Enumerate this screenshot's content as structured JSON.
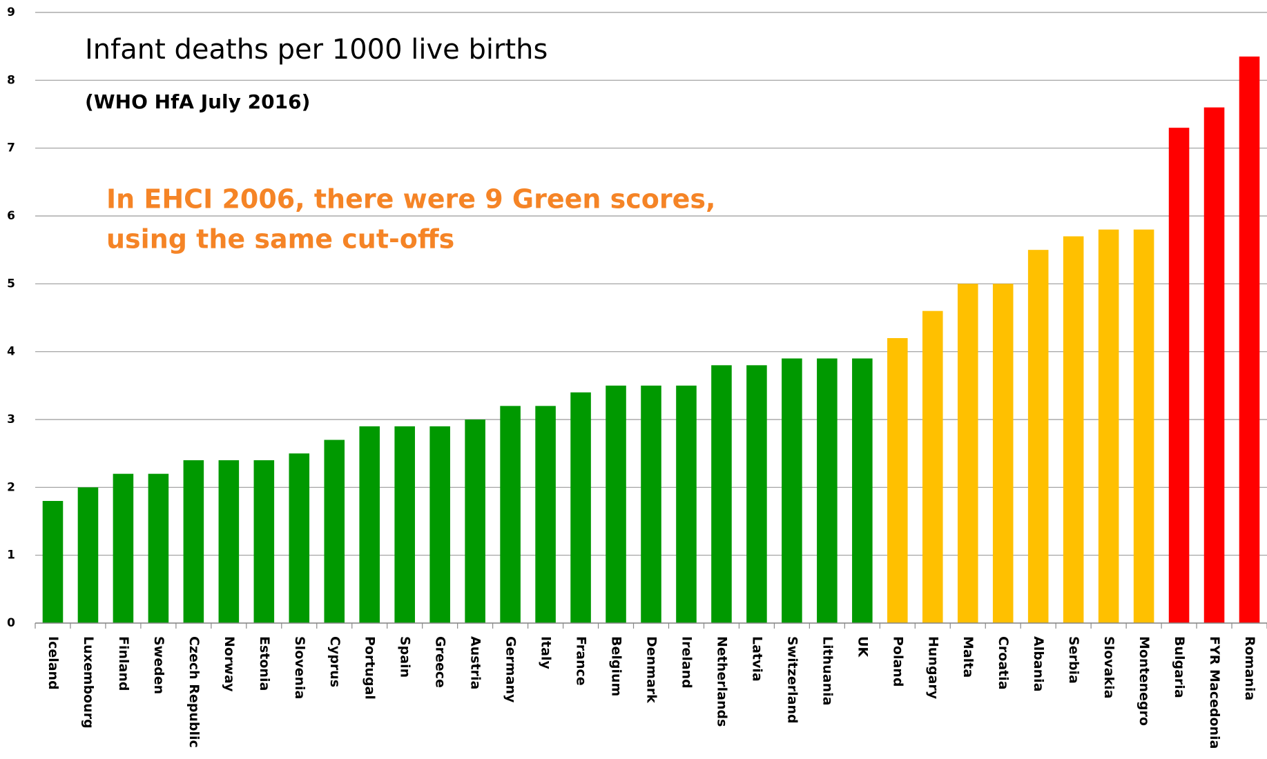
{
  "chart_data": {
    "type": "bar",
    "title": "Infant deaths per 1000 live births",
    "subtitle": "(WHO HfA July 2016)",
    "annotation": [
      "In EHCI 2006, there were 9 Green scores,",
      "using the same cut-offs"
    ],
    "categories": [
      "Iceland",
      "Luxembourg",
      "Finland",
      "Sweden",
      "Czech Republic",
      "Norway",
      "Estonia",
      "Slovenia",
      "Cyprus",
      "Portugal",
      "Spain",
      "Greece",
      "Austria",
      "Germany",
      "Italy",
      "France",
      "Belgium",
      "Denmark",
      "Ireland",
      "Netherlands",
      "Latvia",
      "Switzerland",
      "Lithuania",
      "UK",
      "Poland",
      "Hungary",
      "Malta",
      "Croatia",
      "Albania",
      "Serbia",
      "Slovakia",
      "Montenegro",
      "Bulgaria",
      "FYR Macedonia",
      "Romania"
    ],
    "values": [
      1.8,
      2.0,
      2.2,
      2.2,
      2.4,
      2.4,
      2.4,
      2.5,
      2.7,
      2.9,
      2.9,
      2.9,
      3.0,
      3.2,
      3.2,
      3.4,
      3.5,
      3.5,
      3.5,
      3.8,
      3.8,
      3.9,
      3.9,
      3.9,
      4.2,
      4.6,
      5.0,
      5.0,
      5.5,
      5.7,
      5.8,
      5.8,
      7.3,
      7.6,
      8.35
    ],
    "colors": [
      "#009900",
      "#009900",
      "#009900",
      "#009900",
      "#009900",
      "#009900",
      "#009900",
      "#009900",
      "#009900",
      "#009900",
      "#009900",
      "#009900",
      "#009900",
      "#009900",
      "#009900",
      "#009900",
      "#009900",
      "#009900",
      "#009900",
      "#009900",
      "#009900",
      "#009900",
      "#009900",
      "#009900",
      "#ffc000",
      "#ffc000",
      "#ffc000",
      "#ffc000",
      "#ffc000",
      "#ffc000",
      "#ffc000",
      "#ffc000",
      "#ff0000",
      "#ff0000",
      "#ff0000"
    ],
    "annotation_color": "#f58426",
    "ylim": [
      0,
      9
    ],
    "yticks": [
      0,
      1,
      2,
      3,
      4,
      5,
      6,
      7,
      8,
      9
    ],
    "grid": true
  }
}
